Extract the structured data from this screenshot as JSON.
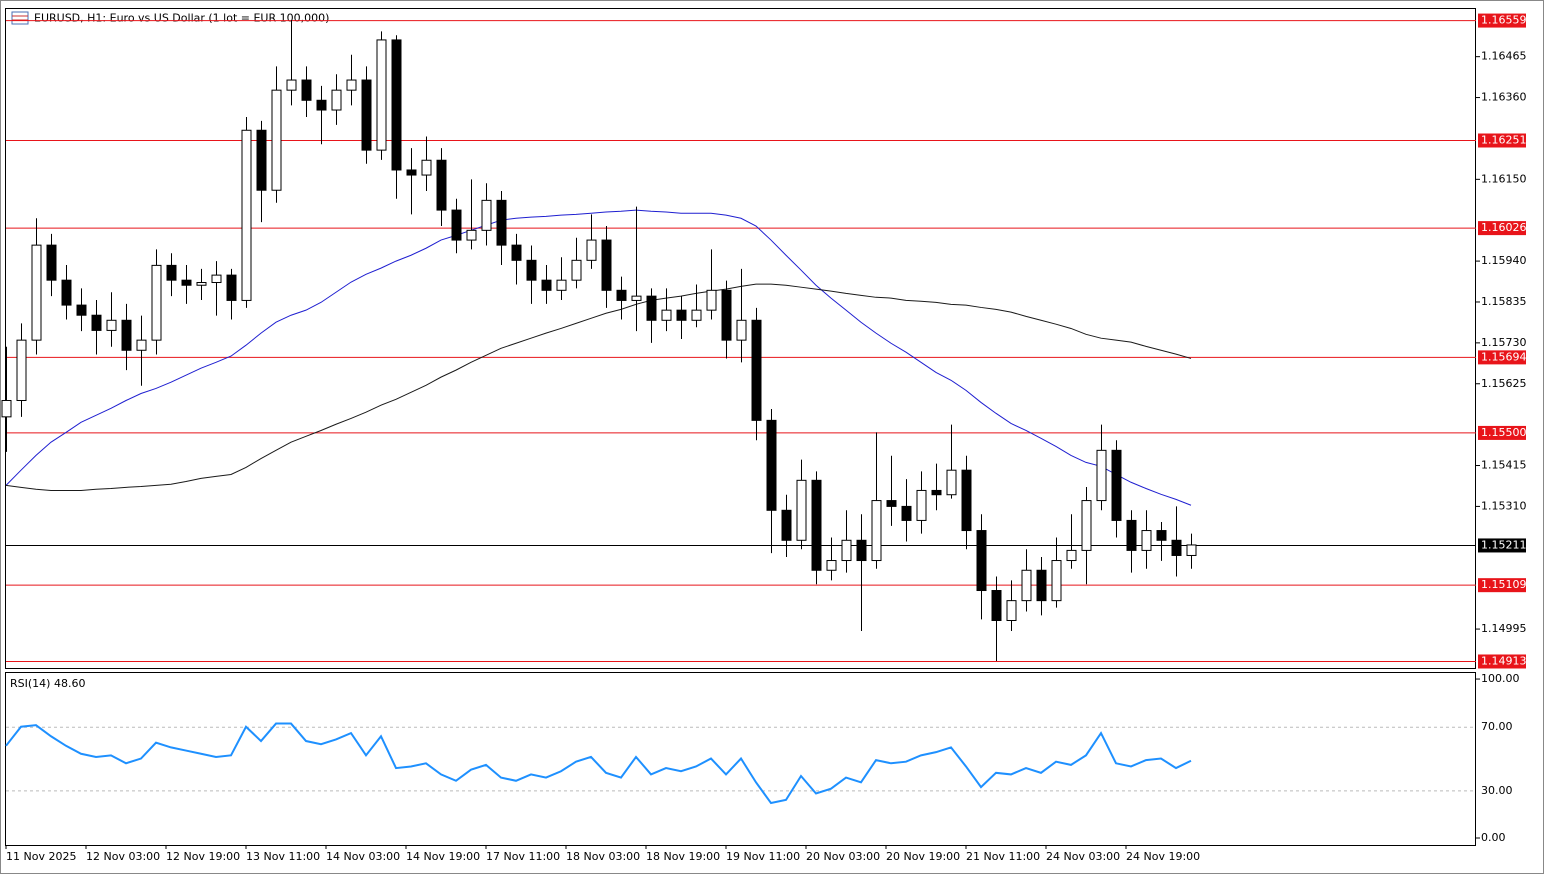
{
  "chart_data": {
    "type": "candlestick",
    "title": "EURUSD, H1:  Euro vs US Dollar (1 lot = EUR 100,000)",
    "up_color": "#ffffff",
    "down_color": "#000000",
    "open": [
      1.1554,
      1.15582,
      1.15737,
      1.15981,
      1.15891,
      1.15827,
      1.15801,
      1.15762,
      1.15788,
      1.15711,
      1.15737,
      1.15929,
      1.15891,
      1.15878,
      1.15885,
      1.15904,
      1.15839,
      1.16276,
      1.16122,
      1.16379,
      1.16405,
      1.16353,
      1.16328,
      1.16379,
      1.16405,
      1.16225,
      1.16508,
      1.16174,
      1.16161,
      1.16199,
      1.16071,
      1.15994,
      1.16019,
      1.16096,
      1.15981,
      1.15942,
      1.15891,
      1.15865,
      1.15891,
      1.15942,
      1.15994,
      1.15865,
      1.15839,
      1.1585,
      1.15788,
      1.15814,
      1.15788,
      1.15814,
      1.15865,
      1.15737,
      1.15788,
      1.15531,
      1.153,
      1.15223,
      1.15377,
      1.15146,
      1.15171,
      1.15223,
      1.15171,
      1.15325,
      1.1531,
      1.15274,
      1.15351,
      1.1534,
      1.15403,
      1.15248,
      1.15094,
      1.15017,
      1.15068,
      1.15146,
      1.15068,
      1.15171,
      1.15197,
      1.15325,
      1.15454,
      1.15274,
      1.15197,
      1.15248,
      1.15223,
      1.15184
    ],
    "high": [
      1.1572,
      1.1578,
      1.1605,
      1.1601,
      1.1593,
      1.1587,
      1.1584,
      1.1586,
      1.1583,
      1.158,
      1.1597,
      1.1596,
      1.1593,
      1.1592,
      1.1594,
      1.1592,
      1.1631,
      1.163,
      1.1644,
      1.16559,
      1.1644,
      1.1639,
      1.1642,
      1.1647,
      1.1644,
      1.1653,
      1.1652,
      1.1623,
      1.1626,
      1.1623,
      1.161,
      1.1615,
      1.1614,
      1.1612,
      1.1601,
      1.1598,
      1.1593,
      1.1595,
      1.16,
      1.1606,
      1.1603,
      1.159,
      1.1608,
      1.1587,
      1.1587,
      1.1585,
      1.1588,
      1.1597,
      1.1589,
      1.1592,
      1.1582,
      1.1556,
      1.1534,
      1.1543,
      1.154,
      1.1523,
      1.153,
      1.1529,
      1.155,
      1.1544,
      1.1538,
      1.154,
      1.1542,
      1.1552,
      1.1544,
      1.1529,
      1.1513,
      1.1512,
      1.152,
      1.1518,
      1.1523,
      1.1529,
      1.1536,
      1.1552,
      1.1548,
      1.153,
      1.153,
      1.1527,
      1.1531,
      1.1524
    ],
    "low": [
      1.1545,
      1.1554,
      1.157,
      1.1585,
      1.1579,
      1.1576,
      1.157,
      1.1572,
      1.1566,
      1.1562,
      1.157,
      1.1585,
      1.1583,
      1.1584,
      1.158,
      1.1579,
      1.1582,
      1.1604,
      1.1609,
      1.1634,
      1.1631,
      1.1624,
      1.1629,
      1.1634,
      1.1619,
      1.162,
      1.161,
      1.1606,
      1.1612,
      1.1603,
      1.1596,
      1.1597,
      1.1598,
      1.1593,
      1.1588,
      1.1583,
      1.1583,
      1.1584,
      1.1587,
      1.1592,
      1.1582,
      1.1579,
      1.1576,
      1.1573,
      1.1576,
      1.1574,
      1.1577,
      1.1579,
      1.1569,
      1.1568,
      1.1548,
      1.1519,
      1.1518,
      1.152,
      1.1511,
      1.1512,
      1.1514,
      1.1499,
      1.1515,
      1.1526,
      1.1522,
      1.1524,
      1.153,
      1.1533,
      1.152,
      1.1502,
      1.14913,
      1.1499,
      1.1504,
      1.1503,
      1.1505,
      1.1515,
      1.1511,
      1.153,
      1.1523,
      1.1514,
      1.1515,
      1.1517,
      1.1513,
      1.1515
    ],
    "close": [
      1.15582,
      1.15737,
      1.15981,
      1.15891,
      1.15827,
      1.15801,
      1.15762,
      1.15788,
      1.15711,
      1.15737,
      1.15929,
      1.15891,
      1.15878,
      1.15885,
      1.15904,
      1.15839,
      1.16276,
      1.16122,
      1.16379,
      1.16405,
      1.16353,
      1.16328,
      1.16379,
      1.16405,
      1.16225,
      1.16508,
      1.16174,
      1.16161,
      1.16199,
      1.16071,
      1.15994,
      1.16019,
      1.16096,
      1.15981,
      1.15942,
      1.15891,
      1.15865,
      1.15891,
      1.15942,
      1.15994,
      1.15865,
      1.15839,
      1.1585,
      1.15788,
      1.15814,
      1.15788,
      1.15814,
      1.15865,
      1.15737,
      1.15788,
      1.15531,
      1.153,
      1.15223,
      1.15377,
      1.15146,
      1.15171,
      1.15223,
      1.15171,
      1.15325,
      1.1531,
      1.15274,
      1.15351,
      1.1534,
      1.15403,
      1.15248,
      1.15094,
      1.15017,
      1.15068,
      1.15146,
      1.15068,
      1.15171,
      1.15197,
      1.15325,
      1.15454,
      1.15274,
      1.15197,
      1.15248,
      1.15223,
      1.15184,
      1.15211
    ],
    "moving_averages": [
      {
        "color": "#1f1fd0",
        "values": [
          1.15364,
          1.15403,
          1.15441,
          1.15475,
          1.155,
          1.15526,
          1.15544,
          1.15562,
          1.15582,
          1.156,
          1.15613,
          1.15629,
          1.15647,
          1.15665,
          1.1568,
          1.15696,
          1.15724,
          1.15755,
          1.15783,
          1.15801,
          1.15814,
          1.15834,
          1.1586,
          1.15886,
          1.15906,
          1.15922,
          1.1594,
          1.15955,
          1.15973,
          1.15994,
          1.16006,
          1.16019,
          1.16032,
          1.16045,
          1.1605,
          1.16053,
          1.16055,
          1.16058,
          1.1606,
          1.16063,
          1.16066,
          1.16068,
          1.16071,
          1.16068,
          1.16066,
          1.16063,
          1.16063,
          1.16063,
          1.16058,
          1.1605,
          1.1603,
          1.15994,
          1.15955,
          1.15917,
          1.15878,
          1.15845,
          1.15814,
          1.15783,
          1.15755,
          1.15729,
          1.15706,
          1.1568,
          1.15654,
          1.15634,
          1.15608,
          1.15577,
          1.15549,
          1.15523,
          1.15505,
          1.15485,
          1.15464,
          1.15441,
          1.15423,
          1.15413,
          1.15392,
          1.15372,
          1.15356,
          1.15341,
          1.15328,
          1.15313
        ]
      },
      {
        "color": "#1a1a1a",
        "values": [
          1.15364,
          1.15359,
          1.15354,
          1.15351,
          1.15351,
          1.15351,
          1.15354,
          1.15356,
          1.15359,
          1.15361,
          1.15364,
          1.15367,
          1.15374,
          1.15382,
          1.15387,
          1.15392,
          1.1541,
          1.15433,
          1.15454,
          1.15475,
          1.1549,
          1.15505,
          1.15521,
          1.15536,
          1.15552,
          1.1557,
          1.15585,
          1.15603,
          1.15621,
          1.15642,
          1.1566,
          1.1568,
          1.15698,
          1.15716,
          1.15729,
          1.15742,
          1.15755,
          1.15767,
          1.1578,
          1.15793,
          1.15806,
          1.15816,
          1.15829,
          1.15839,
          1.15845,
          1.1585,
          1.15857,
          1.15863,
          1.15868,
          1.15875,
          1.15881,
          1.15881,
          1.15878,
          1.15873,
          1.15868,
          1.15863,
          1.15857,
          1.15852,
          1.15847,
          1.15845,
          1.15839,
          1.15837,
          1.15834,
          1.15829,
          1.15827,
          1.15821,
          1.15816,
          1.15809,
          1.15798,
          1.15788,
          1.15778,
          1.15767,
          1.15752,
          1.15742,
          1.15737,
          1.15732,
          1.15721,
          1.15711,
          1.15701,
          1.1569
        ]
      }
    ],
    "levels": {
      "color": "#e8141a",
      "values": [
        1.16559,
        1.16251,
        1.16026,
        1.15694,
        {
          "value": 1.155,
          "label": "1.15500"
        },
        1.15109,
        1.14913
      ]
    },
    "current_price": 1.15211,
    "ylim": [
      1.1659,
      1.14895
    ],
    "yticks": [
      1.16465,
      {
        "value": 1.1636,
        "label": "1.16360"
      },
      {
        "value": 1.1615,
        "label": "1.16150"
      },
      {
        "value": 1.1594,
        "label": "1.15940"
      },
      1.15835,
      {
        "value": 1.1573,
        "label": "1.15730"
      },
      1.15625,
      1.15415,
      {
        "value": 1.1531,
        "label": "1.15310"
      },
      1.14995
    ],
    "xlabels": [
      "11 Nov 2025",
      "12 Nov 03:00",
      "12 Nov 19:00",
      "13 Nov 11:00",
      "14 Nov 03:00",
      "14 Nov 19:00",
      "17 Nov 11:00",
      "18 Nov 03:00",
      "18 Nov 19:00",
      "19 Nov 11:00",
      "20 Nov 03:00",
      "20 Nov 19:00",
      "21 Nov 11:00",
      "24 Nov 03:00",
      "24 Nov 19:00"
    ],
    "rsi": {
      "label": "RSI(14) 48.60",
      "color": "#1e90ff",
      "values": [
        58,
        70,
        71,
        64,
        58,
        53,
        51,
        52,
        47,
        50,
        60,
        57,
        55,
        53,
        51,
        52,
        70,
        61,
        72,
        72,
        61,
        59,
        62,
        66,
        52,
        64,
        44,
        45,
        47,
        40,
        36,
        43,
        46,
        38,
        36,
        40,
        38,
        42,
        48,
        51,
        41,
        38,
        51,
        40,
        44,
        42,
        45,
        50,
        40,
        50,
        35,
        22,
        24,
        39,
        28,
        31,
        38,
        35,
        49,
        47,
        48,
        52,
        54,
        57,
        45,
        32,
        41,
        40,
        44,
        41,
        48,
        46,
        52,
        66,
        47,
        45,
        49,
        50,
        44,
        48.6
      ],
      "ylim": [
        103.8,
        -4.4
      ],
      "yticks": [
        {
          "value": 100,
          "label": "100.00"
        },
        {
          "value": 0,
          "label": "0.00"
        }
      ],
      "levels": [
        {
          "value": 70,
          "label": "70.00"
        },
        {
          "value": 30,
          "label": "30.00"
        }
      ]
    }
  }
}
